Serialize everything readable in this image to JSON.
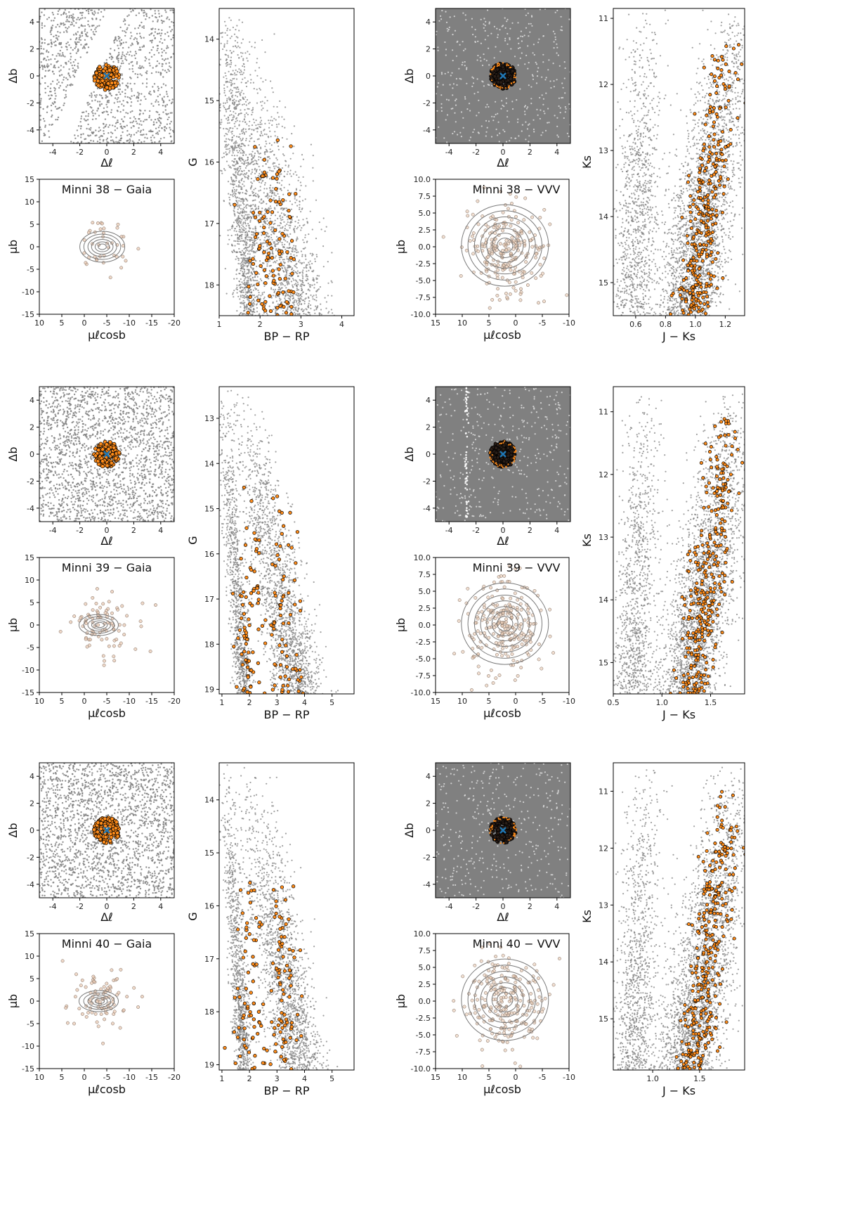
{
  "figure_rows": [
    {
      "cluster": "Minni 38",
      "gaia_title": "Minni 38  −  Gaia",
      "vvv_title": "Minni 38  −  VVV",
      "cmd_gaia_yrange": [
        18.5,
        13.5
      ],
      "cmd_gaia_xrange": [
        1.0,
        4.3
      ],
      "cmd_vvv_xrange": [
        0.45,
        1.33
      ],
      "cmd_vvv_yrange": [
        15.5,
        10.85
      ],
      "cmd_vvv_ticks": [
        0.6,
        0.8,
        1.0,
        1.2
      ],
      "cmd_gaia_xticks": [
        1,
        2,
        3,
        4
      ],
      "cmd_gaia_yticks": [
        14,
        15,
        16,
        17,
        18
      ],
      "cmd_vvv_yticks": [
        11,
        12,
        13,
        14,
        15
      ]
    },
    {
      "cluster": "Minni 39",
      "gaia_title": "Minni 39  −  Gaia",
      "vvv_title": "Minni 39  −  VVV",
      "cmd_gaia_yrange": [
        19.1,
        12.3
      ],
      "cmd_gaia_xrange": [
        0.9,
        5.8
      ],
      "cmd_vvv_xrange": [
        0.5,
        1.85
      ],
      "cmd_vvv_yrange": [
        15.5,
        10.6
      ],
      "cmd_vvv_ticks": [
        0.5,
        1.0,
        1.5
      ],
      "cmd_gaia_xticks": [
        1,
        2,
        3,
        4,
        5
      ],
      "cmd_gaia_yticks": [
        13,
        14,
        15,
        16,
        17,
        18,
        19
      ],
      "cmd_vvv_yticks": [
        11,
        12,
        13,
        14,
        15
      ]
    },
    {
      "cluster": "Minni 40",
      "gaia_title": "Minni 40  −  Gaia",
      "vvv_title": "Minni 40  −  VVV",
      "cmd_gaia_yrange": [
        19.1,
        13.3
      ],
      "cmd_gaia_xrange": [
        0.9,
        5.8
      ],
      "cmd_vvv_xrange": [
        0.58,
        1.98
      ],
      "cmd_vvv_yrange": [
        15.9,
        10.5
      ],
      "cmd_vvv_ticks": [
        1.0,
        1.5
      ],
      "cmd_gaia_xticks": [
        1,
        2,
        3,
        4,
        5
      ],
      "cmd_gaia_yticks": [
        14,
        15,
        16,
        17,
        18,
        19
      ],
      "cmd_vvv_yticks": [
        11,
        12,
        13,
        14,
        15
      ]
    }
  ],
  "labels": {
    "delta_b": "Δb",
    "delta_l": "Δℓ",
    "mu_b": "μb",
    "mu_l": "μℓcosb",
    "G": "G",
    "bprp": "BP − RP",
    "Ks": "Ks",
    "jks": "J − Ks"
  },
  "chart_data": [
    {
      "type": "scatter",
      "panel": "sky-map",
      "xlabel": "Δℓ",
      "ylabel": "Δb",
      "xlim": [
        -5,
        5
      ],
      "ylim": [
        -5,
        5
      ],
      "xticks": [
        -4,
        -2,
        0,
        2,
        4
      ],
      "yticks": [
        -4,
        -2,
        0,
        2,
        4
      ],
      "series": [
        {
          "name": "",
          "color": "#808080"
        },
        {
          "name": "",
          "color": "#ff8c1a"
        },
        {
          "name": "",
          "color": "#1f77b4"
        }
      ]
    },
    {
      "type": "scatter",
      "panel": "gaia-proper-motion",
      "xlabel": "μℓcosb",
      "ylabel": "μb",
      "xlim": [
        10,
        -20
      ],
      "ylim": [
        -15,
        15
      ],
      "xticks": [
        10,
        5,
        0,
        -5,
        -10,
        -15,
        -20
      ],
      "yticks": [
        -15,
        -10,
        -5,
        0,
        5,
        10,
        15
      ]
    },
    {
      "type": "scatter",
      "panel": "vvv-proper-motion",
      "xlabel": "μℓcosb",
      "ylabel": "μb",
      "xlim": [
        15,
        -10
      ],
      "ylim": [
        -10,
        10
      ],
      "xticks": [
        15,
        10,
        5,
        0,
        -5,
        -10
      ],
      "yticks": [
        -10.0,
        -7.5,
        -5.0,
        -2.5,
        0.0,
        2.5,
        5.0,
        7.5,
        10.0
      ]
    },
    {
      "type": "scatter",
      "panel": "gaia-cmd",
      "xlabel": "BP − RP",
      "ylabel": "G"
    },
    {
      "type": "scatter",
      "panel": "vvv-cmd",
      "xlabel": "J − Ks",
      "ylabel": "Ks"
    }
  ],
  "colors": {
    "field": "#808080",
    "member": "#ff8c1a",
    "member_edge": "#000000",
    "center": "#1f77b4",
    "contour": "#7a7a7a",
    "pm_member": "#e8c8b0"
  }
}
